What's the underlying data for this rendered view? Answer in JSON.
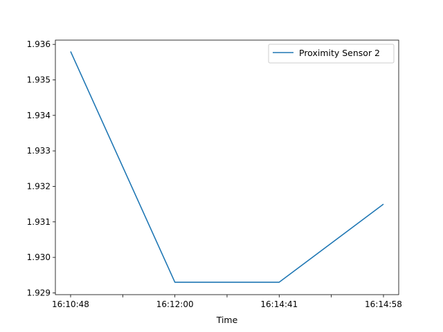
{
  "chart_data": {
    "type": "line",
    "title": "",
    "xlabel": "Time",
    "ylabel": "",
    "x": [
      "16:10:48",
      "16:12:00",
      "16:14:41",
      "16:14:58"
    ],
    "x_tick_labels": [
      "16:10:48",
      "",
      "16:12:00",
      "",
      "16:14:41",
      "",
      "16:14:58"
    ],
    "y_ticks": [
      "1.929",
      "1.930",
      "1.931",
      "1.932",
      "1.933",
      "1.934",
      "1.935",
      "1.936"
    ],
    "ylim": [
      1.92895,
      1.93612
    ],
    "grid": false,
    "legend_position": "upper right",
    "series": [
      {
        "name": "Proximity Sensor 2",
        "color": "#1f77b4",
        "values": [
          1.9358,
          1.9293,
          1.9293,
          1.9315
        ]
      }
    ]
  }
}
